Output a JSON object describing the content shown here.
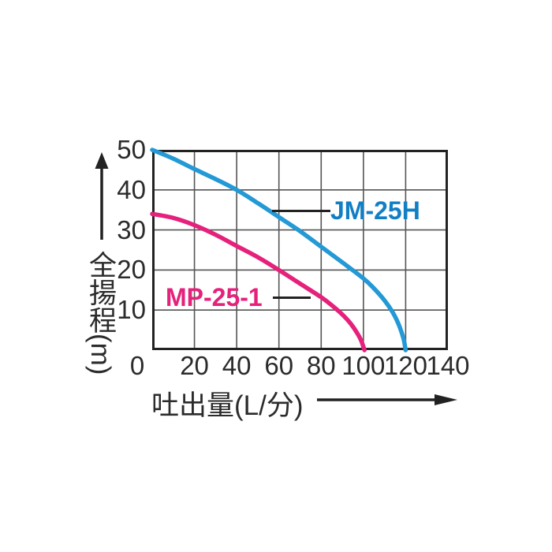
{
  "chart_data": {
    "type": "line",
    "title": "",
    "xlabel": "吐出量(L/分)",
    "ylabel": "全揚程(m)",
    "xlim": [
      0,
      140
    ],
    "ylim": [
      0,
      50
    ],
    "xticks": [
      0,
      20,
      40,
      60,
      80,
      100,
      120,
      140
    ],
    "yticks": [
      10,
      20,
      30,
      40,
      50
    ],
    "grid": true,
    "legend_position": "inline-curve-labels",
    "series": [
      {
        "name": "JM-25H",
        "curve_color": "#2399d5",
        "label_color": "#127fc5",
        "points": [
          [
            0,
            50
          ],
          [
            10,
            47.8
          ],
          [
            20,
            45.2
          ],
          [
            30,
            42.7
          ],
          [
            40,
            40
          ],
          [
            50,
            36.7
          ],
          [
            60,
            33.2
          ],
          [
            70,
            29.7
          ],
          [
            80,
            25.8
          ],
          [
            90,
            21.9
          ],
          [
            100,
            17.9
          ],
          [
            105,
            15.4
          ],
          [
            110,
            12.4
          ],
          [
            114,
            9.3
          ],
          [
            117,
            6.0
          ],
          [
            119,
            2.8
          ],
          [
            120,
            0
          ]
        ]
      },
      {
        "name": "MP-25-1",
        "curve_color": "#e5217b",
        "label_color": "#e5217b",
        "points": [
          [
            0,
            34
          ],
          [
            10,
            33
          ],
          [
            20,
            31.2
          ],
          [
            30,
            28.8
          ],
          [
            40,
            26
          ],
          [
            50,
            23.2
          ],
          [
            60,
            20
          ],
          [
            70,
            16.6
          ],
          [
            80,
            13.2
          ],
          [
            85,
            11.2
          ],
          [
            90,
            8.9
          ],
          [
            94,
            6.6
          ],
          [
            97,
            4.3
          ],
          [
            99,
            2.3
          ],
          [
            100.5,
            0
          ]
        ]
      }
    ]
  },
  "axes": {
    "grid_color": "#555555",
    "frame_color": "#222222",
    "text_color": "#2b2b2b"
  }
}
